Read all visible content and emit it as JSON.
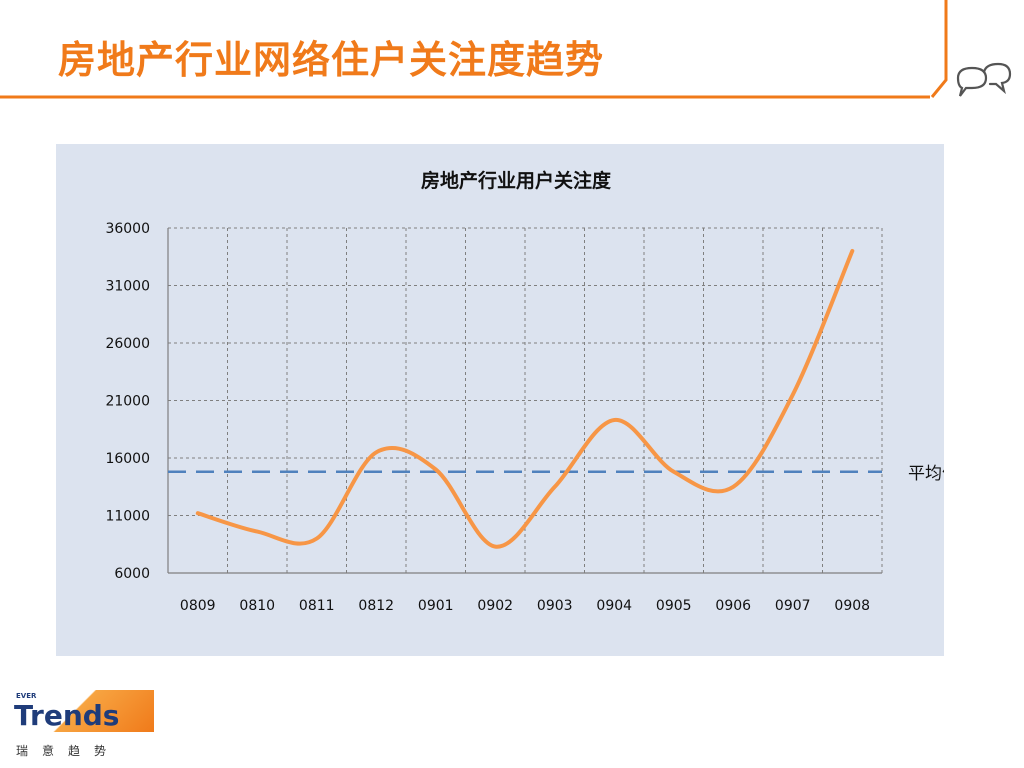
{
  "slide": {
    "title": "房地产行业网络住户关注度趋势"
  },
  "logo": {
    "small": "EVER",
    "brand": "Trends",
    "subtitle": "瑞意趋势"
  },
  "colors": {
    "accent": "#f07a1a",
    "panel": "#dce3ef",
    "series": "#f79646",
    "average": "#4f81bd"
  },
  "icons": {
    "corner": "speech-bubbles-icon"
  },
  "chart_data": {
    "type": "line",
    "title": "房地产行业用户关注度",
    "xlabel": "",
    "ylabel": "",
    "categories": [
      "0809",
      "0810",
      "0811",
      "0812",
      "0901",
      "0902",
      "0903",
      "0904",
      "0905",
      "0906",
      "0907",
      "0908"
    ],
    "series": [
      {
        "values": [
          11200,
          9600,
          9000,
          16500,
          15000,
          8300,
          13500,
          19300,
          14800,
          13500,
          21500,
          34000
        ]
      }
    ],
    "average": {
      "label": "平均值",
      "value": 14800
    },
    "ylim": [
      6000,
      36000
    ],
    "yticks": [
      "36000",
      "31000",
      "26000",
      "21000",
      "16000",
      "11000",
      "6000"
    ],
    "grid": true,
    "smooth": true
  }
}
